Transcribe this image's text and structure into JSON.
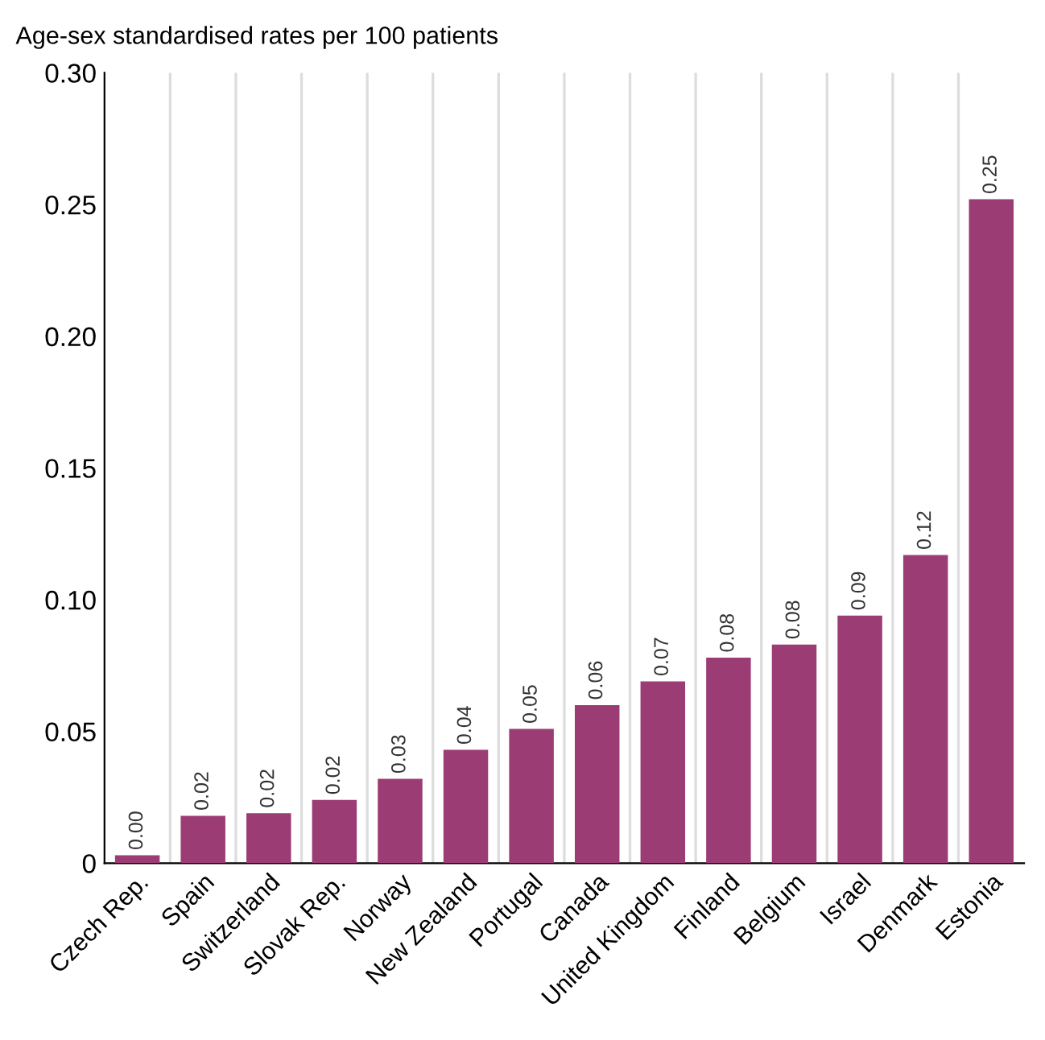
{
  "chart_data": {
    "type": "bar",
    "ylabel": "Age-sex standardised rates per 100 patients",
    "categories": [
      "Czech Rep.",
      "Spain",
      "Switzerland",
      "Slovak Rep.",
      "Norway",
      "New Zealand",
      "Portugal",
      "Canada",
      "United Kingdom",
      "Finland",
      "Belgium",
      "Israel",
      "Denmark",
      "Estonia"
    ],
    "values": [
      0.003,
      0.018,
      0.019,
      0.024,
      0.032,
      0.043,
      0.051,
      0.06,
      0.069,
      0.078,
      0.083,
      0.094,
      0.117,
      0.252
    ],
    "value_labels": [
      "0.00",
      "0.02",
      "0.02",
      "0.02",
      "0.03",
      "0.04",
      "0.05",
      "0.06",
      "0.07",
      "0.08",
      "0.08",
      "0.09",
      "0.12",
      "0.25"
    ],
    "color": "#9b3d74",
    "ylim": [
      0,
      0.3
    ],
    "yticks": [
      {
        "value": 0,
        "label": "0"
      },
      {
        "value": 0.05,
        "label": "0.05"
      },
      {
        "value": 0.1,
        "label": "0.10"
      },
      {
        "value": 0.15,
        "label": "0.15"
      },
      {
        "value": 0.2,
        "label": "0.20"
      },
      {
        "value": 0.25,
        "label": "0.25"
      },
      {
        "value": 0.3,
        "label": "0.30"
      }
    ],
    "grid": "x"
  }
}
